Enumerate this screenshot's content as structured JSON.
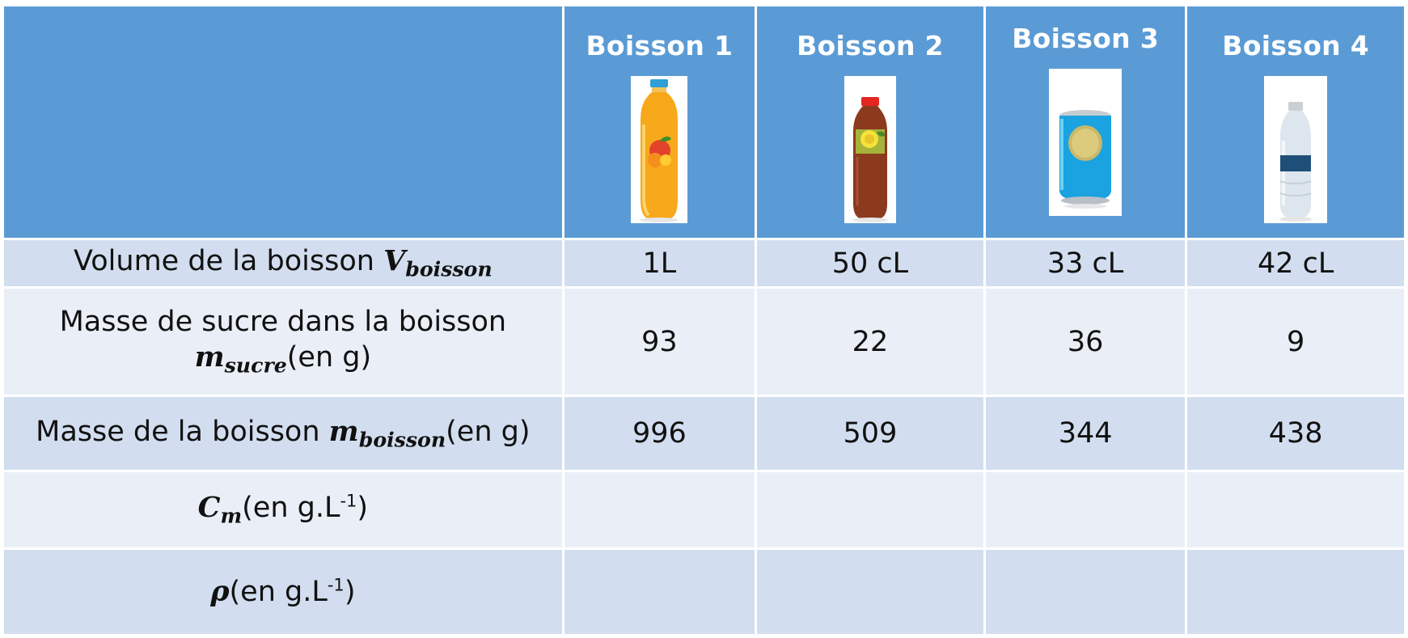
{
  "table": {
    "headers": [
      "Boisson 1",
      "Boisson 2",
      "Boisson 3",
      "Boisson 4"
    ],
    "drink_icons": [
      "orange-juice-bottle-icon",
      "iced-tea-bottle-icon",
      "soda-can-icon",
      "water-bottle-icon"
    ],
    "rows": [
      {
        "label_text": "Volume de la boisson ",
        "var": "V",
        "var_sub": "boisson",
        "unit": "",
        "values": [
          "1L",
          "50 cL",
          "33 cL",
          "42 cL"
        ]
      },
      {
        "label_text": "Masse de sucre dans la boisson",
        "var": "m",
        "var_sub": "sucre",
        "unit": "(en g)",
        "values": [
          "93",
          "22",
          "36",
          "9"
        ]
      },
      {
        "label_text": "Masse de la boisson ",
        "var": "m",
        "var_sub": "boisson",
        "unit": "(en g)",
        "values": [
          "996",
          "509",
          "344",
          "438"
        ]
      },
      {
        "label_text": "",
        "var": "C",
        "var_sub": "m",
        "unit": "(en g.L",
        "unit_sup": "-1",
        "unit_close": ")",
        "values": [
          "",
          "",
          "",
          ""
        ]
      },
      {
        "label_text": "",
        "var": "ρ",
        "var_sub": "",
        "unit": "(en g.L",
        "unit_sup": "-1",
        "unit_close": ")",
        "values": [
          "",
          "",
          "",
          ""
        ]
      }
    ]
  },
  "colors": {
    "header_bg": "#5b9bd5",
    "row_dark": "#d2deef",
    "row_light": "#eaeff7",
    "orange_juice": "#f7a81b",
    "iced_tea": "#8b3a1e",
    "soda_can": "#1aa3e0",
    "water_label": "#1f4e79"
  }
}
